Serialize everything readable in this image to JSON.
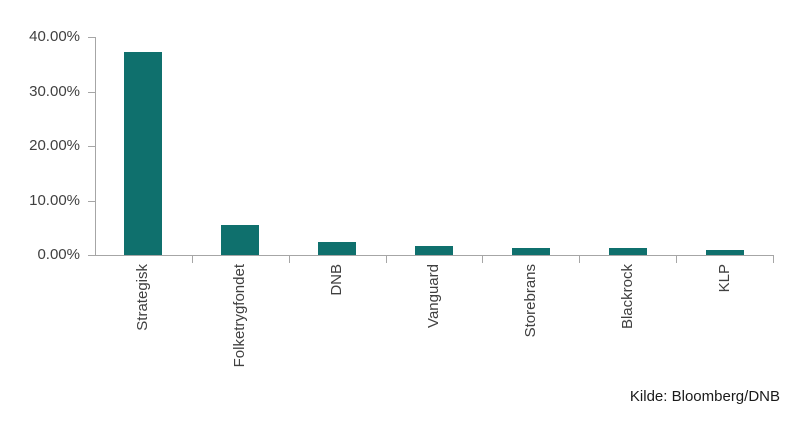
{
  "chart_data": {
    "type": "bar",
    "title": "",
    "categories": [
      "Strategisk",
      "Folketrygfondet",
      "DNB",
      "Vanguard",
      "Storebrans",
      "Blackrock",
      "KLP"
    ],
    "values": [
      37.2,
      5.5,
      2.4,
      1.7,
      1.3,
      1.3,
      1.0
    ],
    "xlabel": "",
    "ylabel": "",
    "ylim": [
      0,
      40
    ],
    "ytick_labels": [
      "0.00%",
      "10.00%",
      "20.00%",
      "30.00%",
      "40.00%"
    ],
    "ytick_values": [
      0,
      10,
      20,
      30,
      40
    ],
    "bar_color": "#0f706d",
    "axis_color": "#a6a6a6",
    "tick_label_color": "#404040",
    "grid": false,
    "legend": "none",
    "category_label_rotation_deg": -90
  },
  "footer": {
    "source_label": "Kilde: Bloomberg/DNB"
  }
}
